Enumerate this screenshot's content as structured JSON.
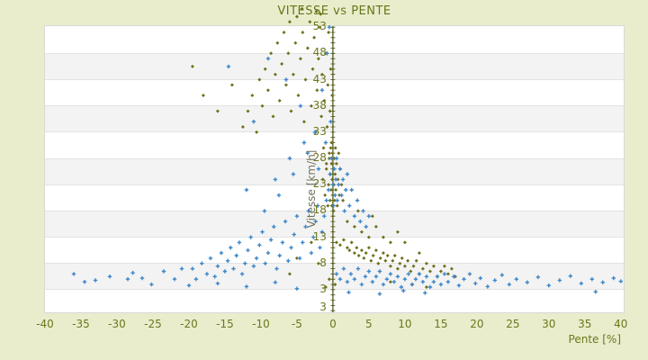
{
  "chart_data": {
    "type": "scatter",
    "title": "VITESSE vs PENTE",
    "xlabel": "Pente [%]",
    "ylabel": "Vitesse [km/h]",
    "xlim": [
      -40,
      40.4
    ],
    "ylim": [
      -1.3,
      53.2
    ],
    "x_ticks": [
      -40,
      -35,
      -30,
      -25,
      -20,
      -15,
      -10,
      -5,
      0,
      5,
      10,
      15,
      20,
      25,
      30,
      35,
      40
    ],
    "y_ticks": [
      53,
      48,
      43,
      38,
      33,
      28,
      23,
      18,
      13,
      8,
      3
    ],
    "y_axis_bottom_label": "3",
    "grid": "horizontal-bands",
    "band_colors": [
      "#ffffff",
      "#f3f3f3"
    ],
    "gridline_color": "#e3e3e3",
    "zero_line_color": "#474f0a",
    "legend": "none",
    "series": [
      {
        "name": "serie-olive",
        "marker": "diamond",
        "color": "#70701d",
        "points": [
          [
            -19.5,
            45.5
          ],
          [
            -18,
            40
          ],
          [
            -16,
            37
          ],
          [
            -14,
            42
          ],
          [
            -12.5,
            34
          ],
          [
            -11.8,
            37
          ],
          [
            -11.2,
            40
          ],
          [
            -10.6,
            33
          ],
          [
            -10.2,
            43
          ],
          [
            -9.8,
            38
          ],
          [
            -9.4,
            45
          ],
          [
            -9,
            41
          ],
          [
            -8.6,
            48
          ],
          [
            -8.3,
            36
          ],
          [
            -8,
            44
          ],
          [
            -7.7,
            50
          ],
          [
            -7.4,
            39
          ],
          [
            -7.1,
            46
          ],
          [
            -6.8,
            52
          ],
          [
            -6.5,
            42
          ],
          [
            -6.2,
            48
          ],
          [
            -6,
            54
          ],
          [
            -5.8,
            37
          ],
          [
            -5.5,
            44
          ],
          [
            -5.2,
            50
          ],
          [
            -5,
            55
          ],
          [
            -4.8,
            40
          ],
          [
            -4.5,
            47
          ],
          [
            -4.2,
            52
          ],
          [
            -4,
            35
          ],
          [
            -3.8,
            43
          ],
          [
            -3.5,
            49
          ],
          [
            -3.2,
            54
          ],
          [
            -3,
            38
          ],
          [
            -2.8,
            45
          ],
          [
            -2.6,
            51
          ],
          [
            -2.4,
            33
          ],
          [
            -2.2,
            41
          ],
          [
            -2,
            47
          ],
          [
            -1.8,
            53
          ],
          [
            -1.6,
            36
          ],
          [
            -1.5,
            44
          ],
          [
            -1.3,
            30
          ],
          [
            -1.2,
            39
          ],
          [
            -1,
            48
          ],
          [
            -0.9,
            27
          ],
          [
            -0.8,
            34
          ],
          [
            -0.7,
            42
          ],
          [
            -0.6,
            52
          ],
          [
            -0.5,
            29
          ],
          [
            -0.4,
            37
          ],
          [
            -0.3,
            45
          ],
          [
            -0.2,
            31
          ],
          [
            -0.1,
            40
          ],
          [
            -4.3,
            56.5
          ],
          [
            -2.3,
            56
          ],
          [
            -1.7,
            55.5
          ],
          [
            -1.4,
            24
          ],
          [
            -1.1,
            21
          ],
          [
            -0.9,
            26
          ],
          [
            -0.7,
            19
          ],
          [
            -0.6,
            23
          ],
          [
            -0.5,
            28
          ],
          [
            -0.4,
            20
          ],
          [
            -0.35,
            25
          ],
          [
            -0.3,
            30
          ],
          [
            -0.25,
            22
          ],
          [
            -0.2,
            27
          ],
          [
            -0.15,
            19
          ],
          [
            -0.1,
            24
          ],
          [
            -0.05,
            29
          ],
          [
            0,
            21
          ],
          [
            0.05,
            26
          ],
          [
            0.1,
            18
          ],
          [
            0.15,
            23
          ],
          [
            0.2,
            28
          ],
          [
            0.25,
            20
          ],
          [
            0.3,
            25
          ],
          [
            0.35,
            30
          ],
          [
            0.4,
            22
          ],
          [
            0.5,
            27
          ],
          [
            0.6,
            19
          ],
          [
            0.7,
            24
          ],
          [
            0.8,
            29
          ],
          [
            0.9,
            21
          ],
          [
            1,
            26
          ],
          [
            1.2,
            23
          ],
          [
            1.4,
            20
          ],
          [
            0.5,
            12
          ],
          [
            1,
            11.5
          ],
          [
            1.5,
            12.5
          ],
          [
            2,
            11
          ],
          [
            2.3,
            10.5
          ],
          [
            2.6,
            12
          ],
          [
            3,
            10
          ],
          [
            3.3,
            11
          ],
          [
            3.6,
            9.5
          ],
          [
            4,
            10.5
          ],
          [
            4.3,
            9
          ],
          [
            4.6,
            10
          ],
          [
            5,
            11
          ],
          [
            5.3,
            8.5
          ],
          [
            5.6,
            9.5
          ],
          [
            6,
            10.5
          ],
          [
            6.3,
            8
          ],
          [
            6.6,
            9
          ],
          [
            7,
            10
          ],
          [
            7.3,
            8.5
          ],
          [
            7.6,
            9.5
          ],
          [
            8,
            7.5
          ],
          [
            8.3,
            8.5
          ],
          [
            8.6,
            9.5
          ],
          [
            9,
            7
          ],
          [
            9.3,
            8
          ],
          [
            9.6,
            9
          ],
          [
            10,
            7.5
          ],
          [
            10.4,
            8.5
          ],
          [
            10.8,
            6.5
          ],
          [
            11.2,
            7.5
          ],
          [
            11.6,
            8.5
          ],
          [
            12,
            6
          ],
          [
            12.5,
            7
          ],
          [
            13,
            8
          ],
          [
            13.5,
            6.5
          ],
          [
            14,
            7.5
          ],
          [
            14.5,
            5.5
          ],
          [
            15,
            6.5
          ],
          [
            15.5,
            7.5
          ],
          [
            16,
            6
          ],
          [
            16.5,
            7
          ],
          [
            17,
            5.5
          ],
          [
            2,
            16
          ],
          [
            3,
            15
          ],
          [
            4,
            14
          ],
          [
            5,
            13
          ],
          [
            6,
            15
          ],
          [
            7,
            13
          ],
          [
            8,
            12
          ],
          [
            9,
            14
          ],
          [
            10,
            12
          ],
          [
            12,
            10
          ],
          [
            3.5,
            18
          ],
          [
            5.5,
            17
          ],
          [
            -3,
            12
          ],
          [
            -5,
            9
          ],
          [
            -2,
            8
          ],
          [
            -0.5,
            5
          ],
          [
            -1,
            3.5
          ],
          [
            0.3,
            4
          ],
          [
            -6,
            6
          ],
          [
            11,
            4
          ],
          [
            8,
            4.5
          ],
          [
            13,
            3.5
          ]
        ]
      },
      {
        "name": "serie-bleue",
        "marker": "plus",
        "color": "#3c86c9",
        "points": [
          [
            -36,
            6
          ],
          [
            -34.5,
            4.5
          ],
          [
            -33,
            4.8
          ],
          [
            -31,
            5.5
          ],
          [
            -28.5,
            5
          ],
          [
            -27.8,
            6.2
          ],
          [
            -26.5,
            5.2
          ],
          [
            -25.2,
            4
          ],
          [
            -23.5,
            6.5
          ],
          [
            -22,
            5
          ],
          [
            -21,
            7
          ],
          [
            -19.5,
            7
          ],
          [
            -19,
            5
          ],
          [
            -18.2,
            8
          ],
          [
            -17.5,
            6
          ],
          [
            -17,
            9
          ],
          [
            -16.4,
            5.5
          ],
          [
            -16,
            7.5
          ],
          [
            -15.5,
            10
          ],
          [
            -15,
            6.5
          ],
          [
            -14.6,
            8.5
          ],
          [
            -14.2,
            11
          ],
          [
            -13.8,
            7
          ],
          [
            -13.4,
            9.5
          ],
          [
            -13,
            12
          ],
          [
            -12.6,
            6
          ],
          [
            -12.2,
            8
          ],
          [
            -11.8,
            10.5
          ],
          [
            -11.4,
            13
          ],
          [
            -11,
            7.5
          ],
          [
            -10.6,
            9
          ],
          [
            -10.2,
            11.5
          ],
          [
            -9.8,
            14
          ],
          [
            -9.4,
            8
          ],
          [
            -9,
            10
          ],
          [
            -8.6,
            12.5
          ],
          [
            -8.2,
            15
          ],
          [
            -7.8,
            7
          ],
          [
            -7.4,
            9.5
          ],
          [
            -7,
            12
          ],
          [
            -6.6,
            16
          ],
          [
            -6.2,
            8.5
          ],
          [
            -5.8,
            11
          ],
          [
            -5.4,
            13.5
          ],
          [
            -5,
            17
          ],
          [
            -4.6,
            9
          ],
          [
            -4.2,
            12
          ],
          [
            -3.8,
            15
          ],
          [
            -3.4,
            18
          ],
          [
            -3,
            10
          ],
          [
            -2.7,
            13
          ],
          [
            -2.4,
            16
          ],
          [
            -2.1,
            19
          ],
          [
            -1.8,
            11
          ],
          [
            -1.5,
            14
          ],
          [
            -1.2,
            17
          ],
          [
            -0.9,
            20
          ],
          [
            -14.5,
            45.5
          ],
          [
            -11,
            35
          ],
          [
            -9,
            47
          ],
          [
            -6.5,
            43
          ],
          [
            -4.5,
            38
          ],
          [
            -2.5,
            33
          ],
          [
            -1.5,
            41
          ],
          [
            -0.8,
            48
          ],
          [
            -0.5,
            53
          ],
          [
            -0.3,
            35
          ],
          [
            -3.5,
            29
          ],
          [
            -5.5,
            25
          ],
          [
            -7.5,
            21
          ],
          [
            -9.5,
            18
          ],
          [
            -12,
            22
          ],
          [
            -2,
            26
          ],
          [
            -1,
            31
          ],
          [
            -4,
            31
          ],
          [
            -6,
            28
          ],
          [
            -8,
            24
          ],
          [
            -0.6,
            22
          ],
          [
            -0.4,
            25
          ],
          [
            -0.2,
            28
          ],
          [
            0,
            23
          ],
          [
            0.1,
            19
          ],
          [
            0.2,
            26
          ],
          [
            0.3,
            21
          ],
          [
            0.4,
            24
          ],
          [
            0.5,
            28
          ],
          [
            0.6,
            20
          ],
          [
            0.8,
            23
          ],
          [
            1,
            26
          ],
          [
            1.2,
            21
          ],
          [
            1.4,
            24
          ],
          [
            1.6,
            18
          ],
          [
            1.8,
            22
          ],
          [
            2,
            25
          ],
          [
            2.3,
            19
          ],
          [
            2.6,
            22
          ],
          [
            3,
            17
          ],
          [
            3.4,
            20
          ],
          [
            3.8,
            16
          ],
          [
            4.2,
            18
          ],
          [
            4.6,
            15
          ],
          [
            5,
            17
          ],
          [
            0.5,
            6
          ],
          [
            1,
            5
          ],
          [
            1.5,
            7
          ],
          [
            2,
            4.5
          ],
          [
            2.5,
            6
          ],
          [
            3,
            5
          ],
          [
            3.5,
            7
          ],
          [
            4,
            4
          ],
          [
            4.5,
            5.5
          ],
          [
            5,
            6.5
          ],
          [
            5.5,
            4.5
          ],
          [
            6,
            5.5
          ],
          [
            6.5,
            6.5
          ],
          [
            7,
            4
          ],
          [
            7.5,
            5
          ],
          [
            8,
            6
          ],
          [
            8.5,
            4.5
          ],
          [
            9,
            5.5
          ],
          [
            9.5,
            3.5
          ],
          [
            10,
            5
          ],
          [
            10.5,
            6
          ],
          [
            11,
            4
          ],
          [
            11.5,
            5
          ],
          [
            12,
            6
          ],
          [
            12.5,
            4.5
          ],
          [
            13,
            5.5
          ],
          [
            13.5,
            3.5
          ],
          [
            14,
            4.5
          ],
          [
            14.5,
            5.5
          ],
          [
            15,
            4
          ],
          [
            15.5,
            6
          ],
          [
            16,
            4.5
          ],
          [
            16.8,
            5.5
          ],
          [
            17.5,
            3.8
          ],
          [
            18.2,
            5
          ],
          [
            19,
            6
          ],
          [
            19.8,
            4.2
          ],
          [
            20.5,
            5.2
          ],
          [
            21.5,
            3.6
          ],
          [
            22.5,
            4.8
          ],
          [
            23.5,
            5.8
          ],
          [
            24.5,
            4
          ],
          [
            25.5,
            5
          ],
          [
            27,
            4.4
          ],
          [
            28.5,
            5.4
          ],
          [
            30,
            3.8
          ],
          [
            31.5,
            4.8
          ],
          [
            33,
            5.6
          ],
          [
            34.5,
            4.2
          ],
          [
            36,
            5
          ],
          [
            37.5,
            4.4
          ],
          [
            39,
            5.2
          ],
          [
            40,
            4.6
          ],
          [
            -20,
            3.8
          ],
          [
            -16,
            4.2
          ],
          [
            -12,
            3.6
          ],
          [
            -8,
            4.4
          ],
          [
            -5,
            3.2
          ],
          [
            2.2,
            2.5
          ],
          [
            6.5,
            2.2
          ],
          [
            9.8,
            2.8
          ],
          [
            12.8,
            2.4
          ],
          [
            36.5,
            2.6
          ]
        ]
      }
    ]
  },
  "colors": {
    "background": "#e9edcc",
    "plot_background": "#ffffff",
    "alt_band": "#f3f3f3",
    "plot_border": "#d9d9d9",
    "label_olive": "#6e761c",
    "title_olive": "#66761a",
    "y_axis_title_gray": "#70705a",
    "blue_series": "#3c86c9",
    "olive_series": "#70701d",
    "zero_line": "#474f0a"
  }
}
